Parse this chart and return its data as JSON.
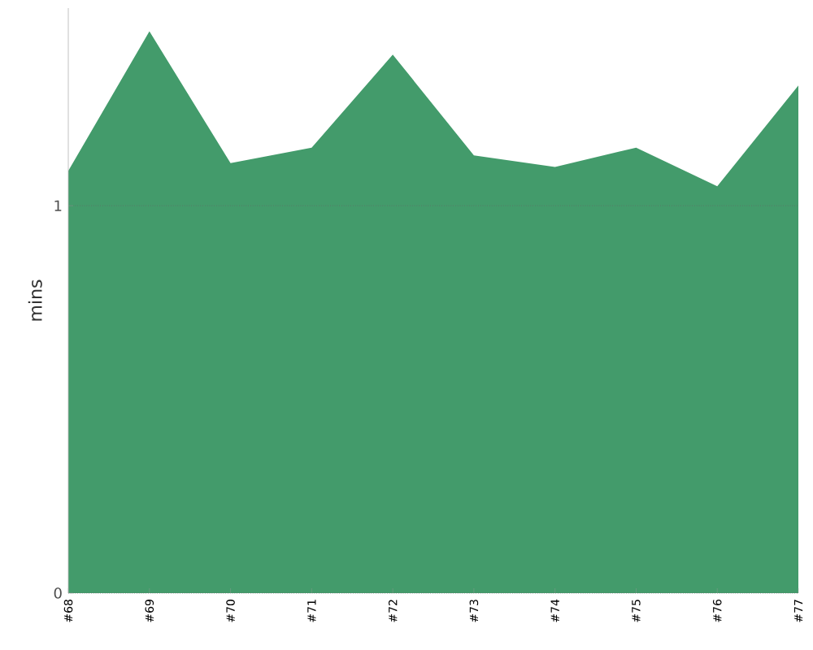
{
  "chart_data": {
    "type": "area",
    "ylabel": "mins",
    "categories": [
      "#68",
      "#69",
      "#70",
      "#71",
      "#72",
      "#73",
      "#74",
      "#75",
      "#76",
      "#77"
    ],
    "values": [
      1.09,
      1.45,
      1.11,
      1.15,
      1.39,
      1.13,
      1.1,
      1.15,
      1.05,
      1.31
    ],
    "color": "#439b6b",
    "ylim": [
      0,
      1.51
    ],
    "yticks": [
      0,
      1
    ],
    "grid": "y"
  }
}
